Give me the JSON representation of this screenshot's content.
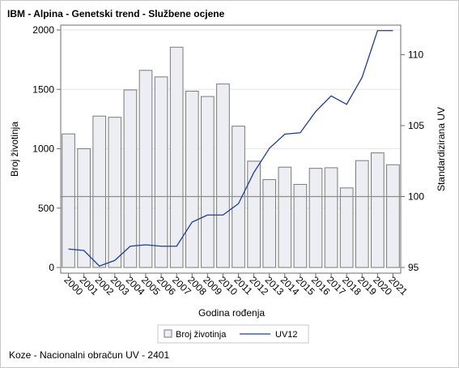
{
  "title": "IBM - Alpina - Genetski trend - Službene ocjene",
  "footnote": "Koze - Nacionalni obračun UV - 2401",
  "chart_data": {
    "type": "bar",
    "categories": [
      "2000",
      "2001",
      "2002",
      "2003",
      "2004",
      "2005",
      "2006",
      "2007",
      "2008",
      "2009",
      "2010",
      "2011",
      "2012",
      "2013",
      "2014",
      "2015",
      "2016",
      "2017",
      "2018",
      "2019",
      "2020",
      "2021"
    ],
    "series": [
      {
        "name": "Broj životinja",
        "type": "bar",
        "axis": "left",
        "color": "#eceef3",
        "values": [
          1125,
          1000,
          1275,
          1265,
          1495,
          1660,
          1605,
          1855,
          1485,
          1440,
          1545,
          1190,
          895,
          740,
          845,
          700,
          835,
          840,
          670,
          900,
          965,
          865
        ]
      },
      {
        "name": "UV12",
        "type": "line",
        "axis": "right",
        "color": "#1f3d99",
        "values": [
          96.3,
          96.2,
          95.1,
          95.5,
          96.5,
          96.6,
          96.5,
          96.5,
          98.2,
          98.7,
          98.7,
          99.5,
          101.7,
          103.4,
          104.4,
          104.5,
          106.0,
          107.1,
          106.5,
          108.4,
          111.7,
          111.7
        ]
      }
    ],
    "xlabel": "Godina rođenja",
    "ylabel": "Broj životinja",
    "y2label": "Standardizirana UV",
    "ylim": [
      0,
      2000
    ],
    "yticks": [
      "0",
      "500",
      "1000",
      "1500",
      "2000"
    ],
    "y2lim": [
      95,
      112
    ],
    "y2ticks": [
      "95",
      "100",
      "105",
      "110"
    ],
    "reference_line": 100,
    "grid": true,
    "legend_position": "bottom"
  }
}
